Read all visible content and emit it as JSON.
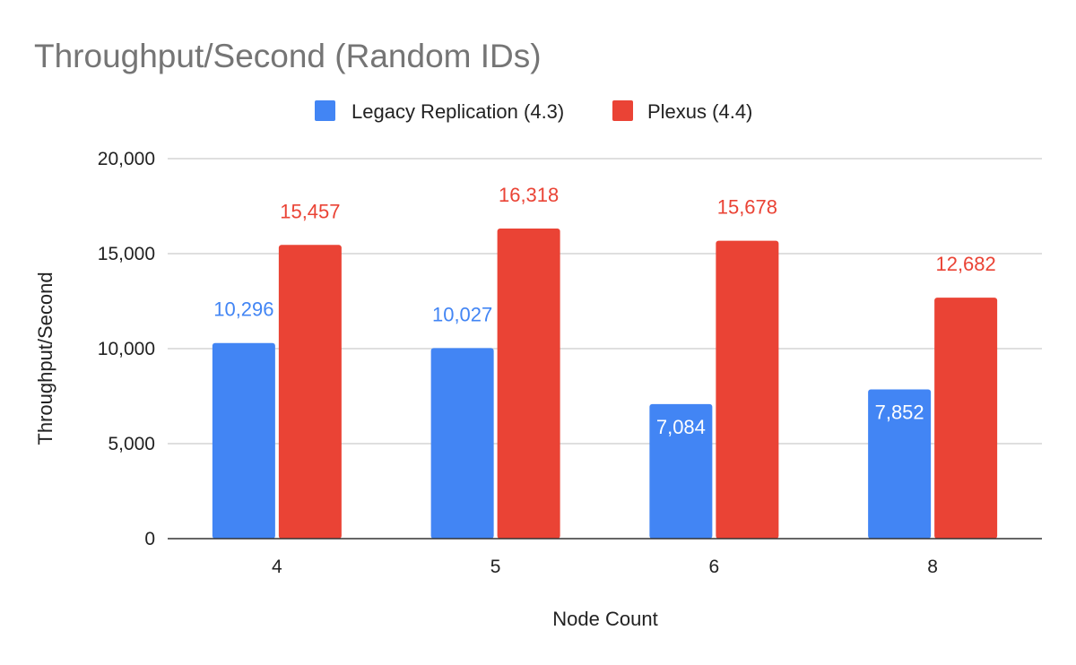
{
  "chart_data": {
    "type": "bar",
    "title": "Throughput/Second (Random IDs)",
    "xlabel": "Node Count",
    "ylabel": "Throughput/Second",
    "categories": [
      "4",
      "5",
      "6",
      "8"
    ],
    "series": [
      {
        "name": "Legacy Replication (4.3)",
        "color": "#4285f4",
        "values": [
          10296,
          10027,
          7084,
          7852
        ],
        "value_labels": [
          "10,296",
          "10,027",
          "7,084",
          "7,852"
        ]
      },
      {
        "name": "Plexus (4.4)",
        "color": "#ea4335",
        "values": [
          15457,
          16318,
          15678,
          12682
        ],
        "value_labels": [
          "15,457",
          "16,318",
          "15,678",
          "12,682"
        ]
      }
    ],
    "ylim": [
      0,
      20000
    ],
    "yticks": [
      0,
      5000,
      10000,
      15000,
      20000
    ],
    "ytick_labels": [
      "0",
      "5,000",
      "10,000",
      "15,000",
      "20,000"
    ],
    "grid": true,
    "legend_position": "top-center"
  }
}
